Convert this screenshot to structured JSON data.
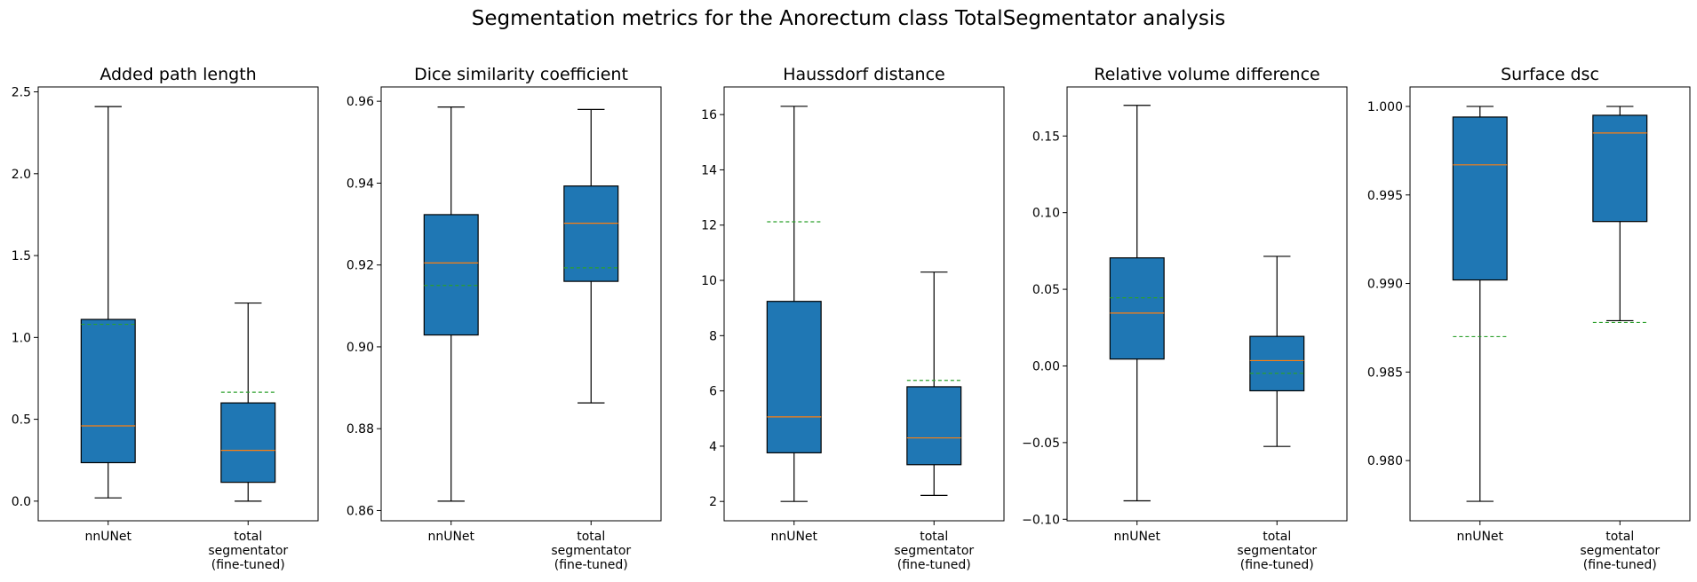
{
  "figure": {
    "title": "Segmentation metrics for the Anorectum class TotalSegmentator analysis"
  },
  "style": {
    "box_fill": "#1f77b4",
    "median_color": "#ff7f0e",
    "mean_color": "#2ca02c",
    "line_color": "#000000"
  },
  "chart_data": [
    {
      "type": "box",
      "title": "Added path length",
      "categories": [
        "nnUNet",
        "total segmentator (fine-tuned)"
      ],
      "ylim": [
        -0.12,
        2.53
      ],
      "yticks": [
        0.0,
        0.5,
        1.0,
        1.5,
        2.0,
        2.5
      ],
      "yticklabels": [
        "0.0",
        "0.5",
        "1.0",
        "1.5",
        "2.0",
        "2.5"
      ],
      "boxes": [
        {
          "whisker_low": 0.02,
          "q1": 0.235,
          "median": 0.46,
          "q3": 1.11,
          "whisker_high": 2.41,
          "mean": 1.08
        },
        {
          "whisker_low": 0.0,
          "q1": 0.115,
          "median": 0.31,
          "q3": 0.6,
          "whisker_high": 1.21,
          "mean": 0.665
        }
      ]
    },
    {
      "type": "box",
      "title": "Dice similarity coefficient",
      "categories": [
        "nnUNet",
        "total segmentator (fine-tuned)"
      ],
      "ylim": [
        0.8575,
        0.9635
      ],
      "yticks": [
        0.86,
        0.88,
        0.9,
        0.92,
        0.94,
        0.96
      ],
      "yticklabels": [
        "0.86",
        "0.88",
        "0.90",
        "0.92",
        "0.94",
        "0.96"
      ],
      "boxes": [
        {
          "whisker_low": 0.8623,
          "q1": 0.9029,
          "median": 0.9205,
          "q3": 0.9323,
          "whisker_high": 0.9586,
          "mean": 0.915
        },
        {
          "whisker_low": 0.8863,
          "q1": 0.916,
          "median": 0.9302,
          "q3": 0.9393,
          "whisker_high": 0.958,
          "mean": 0.9193
        }
      ]
    },
    {
      "type": "box",
      "title": "Haussdorf distance",
      "categories": [
        "nnUNet",
        "total segmentator (fine-tuned)"
      ],
      "ylim": [
        1.3,
        17.0
      ],
      "yticks": [
        2,
        4,
        6,
        8,
        10,
        12,
        14,
        16
      ],
      "yticklabels": [
        "2",
        "4",
        "6",
        "8",
        "10",
        "12",
        "14",
        "16"
      ],
      "boxes": [
        {
          "whisker_low": 2.0,
          "q1": 3.76,
          "median": 5.06,
          "q3": 9.24,
          "whisker_high": 16.3,
          "mean": 12.12
        },
        {
          "whisker_low": 2.22,
          "q1": 3.33,
          "median": 4.3,
          "q3": 6.15,
          "whisker_high": 10.3,
          "mean": 6.38
        }
      ]
    },
    {
      "type": "box",
      "title": "Relative volume difference",
      "categories": [
        "nnUNet",
        "total segmentator (fine-tuned)"
      ],
      "ylim": [
        -0.101,
        0.182
      ],
      "yticks": [
        -0.1,
        -0.05,
        0.0,
        0.05,
        0.1,
        0.15
      ],
      "yticklabels": [
        "−0.10",
        "−0.05",
        "0.00",
        "0.05",
        "0.10",
        "0.15"
      ],
      "boxes": [
        {
          "whisker_low": -0.088,
          "q1": 0.0045,
          "median": 0.0345,
          "q3": 0.0705,
          "whisker_high": 0.17,
          "mean": 0.0445
        },
        {
          "whisker_low": -0.0525,
          "q1": -0.0162,
          "median": 0.0035,
          "q3": 0.0193,
          "whisker_high": 0.0715,
          "mean": -0.0048
        }
      ]
    },
    {
      "type": "box",
      "title": "Surface dsc",
      "categories": [
        "nnUNet",
        "total segmentator (fine-tuned)"
      ],
      "ylim": [
        0.9766,
        1.0011
      ],
      "yticks": [
        0.98,
        0.985,
        0.99,
        0.995,
        1.0
      ],
      "yticklabels": [
        "0.980",
        "0.985",
        "0.990",
        "0.995",
        "1.000"
      ],
      "boxes": [
        {
          "whisker_low": 0.9777,
          "q1": 0.9902,
          "median": 0.9967,
          "q3": 0.9994,
          "whisker_high": 1.0,
          "mean": 0.987
        },
        {
          "whisker_low": 0.9879,
          "q1": 0.9935,
          "median": 0.9985,
          "q3": 0.9995,
          "whisker_high": 1.0,
          "mean": 0.9878
        }
      ]
    }
  ]
}
